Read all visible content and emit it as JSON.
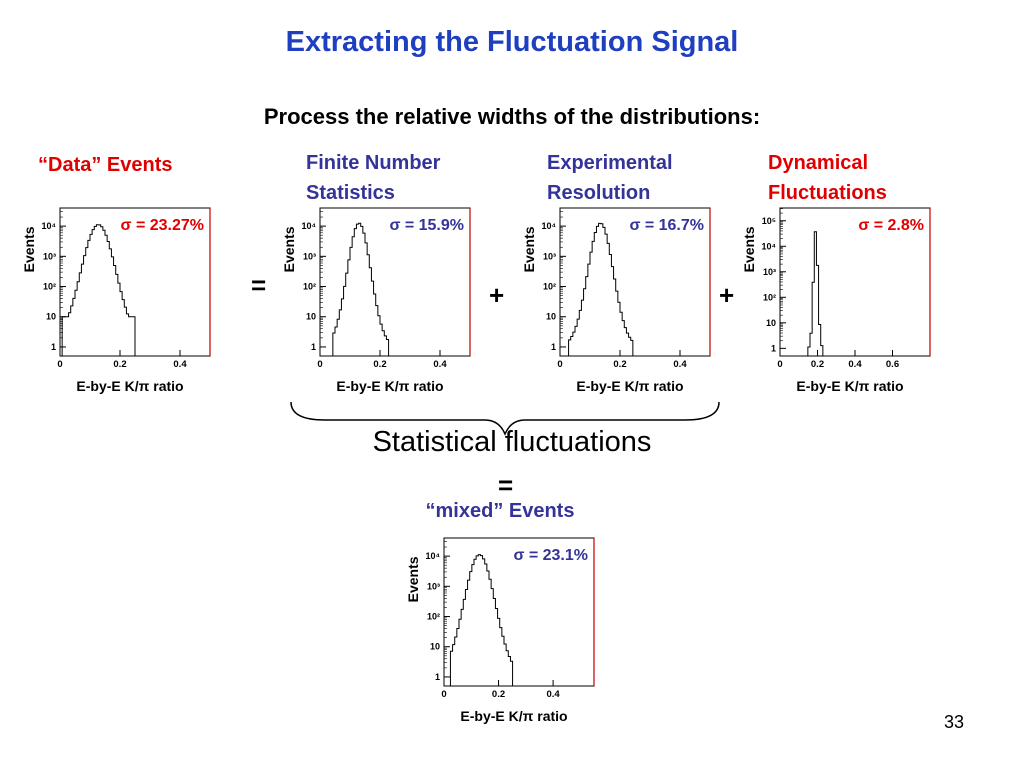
{
  "slide": {
    "title": "Extracting the Fluctuation Signal",
    "subtitle": "Process the relative widths of the distributions:",
    "labels": {
      "data_events": "“Data” Events",
      "finite_line1": "Finite Number",
      "finite_line2": "Statistics",
      "experimental_line1": "Experimental",
      "experimental_line2": "Resolution",
      "dynamical_line1": "Dynamical",
      "dynamical_line2": "Fluctuations",
      "statistical_fluctuations": "Statistical fluctuations",
      "mixed_events": "“mixed” Events"
    },
    "operators": {
      "equals1": "=",
      "plus1": "+",
      "plus2": "+",
      "equals2": "="
    },
    "page_number": "33",
    "colors": {
      "title": "#1f3fc1",
      "label_blue": "#333399",
      "label_red": "#e00000"
    }
  },
  "chart_data": [
    {
      "type": "histogram",
      "id": "data-events",
      "sigma_label": "σ = 23.27%",
      "sigma_color": "#e00000",
      "xlabel": "E-by-E K/π ratio",
      "ylabel": "Events",
      "xlim": [
        0,
        0.5
      ],
      "ylog": true,
      "xticks": [
        {
          "v": 0,
          "t": "0"
        },
        {
          "v": 0.2,
          "t": "0.2"
        },
        {
          "v": 0.4,
          "t": "0.4"
        }
      ],
      "yticks": [
        {
          "e": 0,
          "t": "1"
        },
        {
          "e": 1,
          "t": "10"
        },
        {
          "e": 2,
          "t": "10²"
        },
        {
          "e": 3,
          "t": "10³"
        },
        {
          "e": 4,
          "t": "10⁴"
        }
      ],
      "ylim_exp": [
        -0.3,
        4.6
      ],
      "center": 0.128,
      "width": 0.06,
      "peak_exp": 4.05,
      "range": [
        0.01,
        0.25
      ],
      "cut_exp": 1.0
    },
    {
      "type": "histogram",
      "id": "finite-number-statistics",
      "sigma_label": "σ = 15.9%",
      "sigma_color": "#333399",
      "xlabel": "E-by-E K/π ratio",
      "ylabel": "Events",
      "xlim": [
        0,
        0.5
      ],
      "ylog": true,
      "xticks": [
        {
          "v": 0,
          "t": "0"
        },
        {
          "v": 0.2,
          "t": "0.2"
        },
        {
          "v": 0.4,
          "t": "0.4"
        }
      ],
      "yticks": [
        {
          "e": 0,
          "t": "1"
        },
        {
          "e": 1,
          "t": "10"
        },
        {
          "e": 2,
          "t": "10²"
        },
        {
          "e": 3,
          "t": "10³"
        },
        {
          "e": 4,
          "t": "10⁴"
        }
      ],
      "ylim_exp": [
        -0.3,
        4.6
      ],
      "center": 0.13,
      "width": 0.04,
      "peak_exp": 4.1,
      "range": [
        0.04,
        0.23
      ],
      "cut_exp": -0.3
    },
    {
      "type": "histogram",
      "id": "experimental-resolution",
      "sigma_label": "σ = 16.7%",
      "sigma_color": "#333399",
      "xlabel": "E-by-E K/π ratio",
      "ylabel": "Events",
      "xlim": [
        0,
        0.5
      ],
      "ylog": true,
      "xticks": [
        {
          "v": 0,
          "t": "0"
        },
        {
          "v": 0.2,
          "t": "0.2"
        },
        {
          "v": 0.4,
          "t": "0.4"
        }
      ],
      "yticks": [
        {
          "e": 0,
          "t": "1"
        },
        {
          "e": 1,
          "t": "10"
        },
        {
          "e": 2,
          "t": "10²"
        },
        {
          "e": 3,
          "t": "10³"
        },
        {
          "e": 4,
          "t": "10⁴"
        }
      ],
      "ylim_exp": [
        -0.3,
        4.6
      ],
      "center": 0.135,
      "width": 0.043,
      "peak_exp": 4.1,
      "range": [
        0.03,
        0.24
      ],
      "cut_exp": -0.3
    },
    {
      "type": "histogram",
      "id": "dynamical-fluctuations",
      "sigma_label": "σ = 2.8%",
      "sigma_color": "#e00000",
      "xlabel": "E-by-E K/π ratio",
      "ylabel": "Events",
      "xlim": [
        0,
        0.8
      ],
      "ylog": true,
      "xticks": [
        {
          "v": 0,
          "t": "0"
        },
        {
          "v": 0.2,
          "t": "0.2"
        },
        {
          "v": 0.4,
          "t": "0.4"
        },
        {
          "v": 0.6,
          "t": "0.6"
        }
      ],
      "yticks": [
        {
          "e": 0,
          "t": "1"
        },
        {
          "e": 1,
          "t": "10"
        },
        {
          "e": 2,
          "t": "10²"
        },
        {
          "e": 3,
          "t": "10³"
        },
        {
          "e": 4,
          "t": "10⁴"
        },
        {
          "e": 5,
          "t": "10⁵"
        }
      ],
      "ylim_exp": [
        -0.3,
        5.5
      ],
      "center": 0.19,
      "width": 0.012,
      "peak_exp": 4.6,
      "range": [
        0.15,
        0.23
      ],
      "cut_exp": -0.3
    },
    {
      "type": "histogram",
      "id": "mixed-events",
      "sigma_label": "σ = 23.1%",
      "sigma_color": "#333399",
      "xlabel": "E-by-E K/π ratio",
      "ylabel": "Events",
      "xlim": [
        0,
        0.55
      ],
      "ylog": true,
      "xticks": [
        {
          "v": 0,
          "t": "0"
        },
        {
          "v": 0.2,
          "t": "0.2"
        },
        {
          "v": 0.4,
          "t": "0.4"
        }
      ],
      "yticks": [
        {
          "e": 0,
          "t": "1"
        },
        {
          "e": 1,
          "t": "10"
        },
        {
          "e": 2,
          "t": "10²"
        },
        {
          "e": 3,
          "t": "10³"
        },
        {
          "e": 4,
          "t": "10⁴"
        }
      ],
      "ylim_exp": [
        -0.3,
        4.6
      ],
      "center": 0.13,
      "width": 0.058,
      "peak_exp": 4.05,
      "range": [
        0.02,
        0.255
      ],
      "cut_exp": 0.5
    }
  ]
}
